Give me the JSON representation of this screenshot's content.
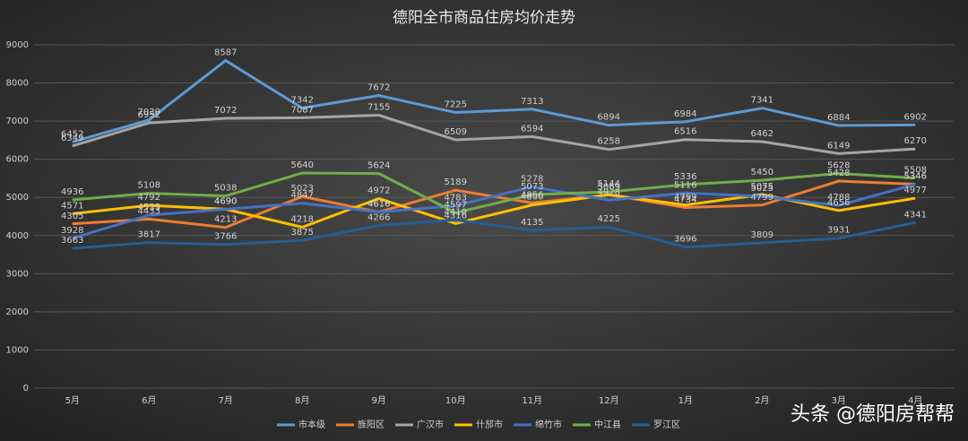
{
  "chart_data": {
    "type": "line",
    "title": "德阳全市商品住房均价走势",
    "categories": [
      "5月",
      "6月",
      "7月",
      "8月",
      "9月",
      "10月",
      "11月",
      "12月",
      "1月",
      "2月",
      "3月",
      "4月"
    ],
    "series": [
      {
        "name": "市本级",
        "color": "#5b9bd5",
        "values": [
          6452,
          7030,
          8587,
          7342,
          7672,
          7225,
          7313,
          6894,
          6984,
          7341,
          6884,
          6902
        ]
      },
      {
        "name": "旌阳区",
        "color": "#ed7d31",
        "values": [
          4305,
          4433,
          4213,
          5023,
          4616,
          5189,
          4856,
          5069,
          4734,
          4799,
          5428,
          5346
        ]
      },
      {
        "name": "广汉市",
        "color": "#a5a5a5",
        "values": [
          6349,
          6952,
          7072,
          7087,
          7155,
          6509,
          6594,
          6258,
          6516,
          6462,
          6149,
          6270
        ]
      },
      {
        "name": "什邡市",
        "color": "#ffc000",
        "values": [
          4571,
          4792,
          4690,
          4218,
          4972,
          4316,
          4800,
          5069,
          4799,
          5075,
          4656,
          4977
        ]
      },
      {
        "name": "绵竹市",
        "color": "#4472c4",
        "values": [
          3928,
          4533,
          4690,
          4847,
          4616,
          4783,
          5278,
          4928,
          5116,
          5025,
          4788,
          5346
        ]
      },
      {
        "name": "中江县",
        "color": "#70ad47",
        "values": [
          4936,
          5108,
          5038,
          5640,
          5624,
          4597,
          5073,
          5144,
          5336,
          5450,
          5628,
          5508
        ]
      },
      {
        "name": "罗江区",
        "color": "#255e91",
        "values": [
          3663,
          3817,
          3766,
          3875,
          4266,
          4410,
          4135,
          4225,
          3696,
          3809,
          3931,
          4341
        ]
      }
    ],
    "ylim": [
      0,
      9000
    ],
    "yticks": [
      0,
      1000,
      2000,
      3000,
      4000,
      5000,
      6000,
      7000,
      8000,
      9000
    ],
    "grid": true,
    "legend": "bottom",
    "watermark": "头条 @德阳房帮帮"
  }
}
